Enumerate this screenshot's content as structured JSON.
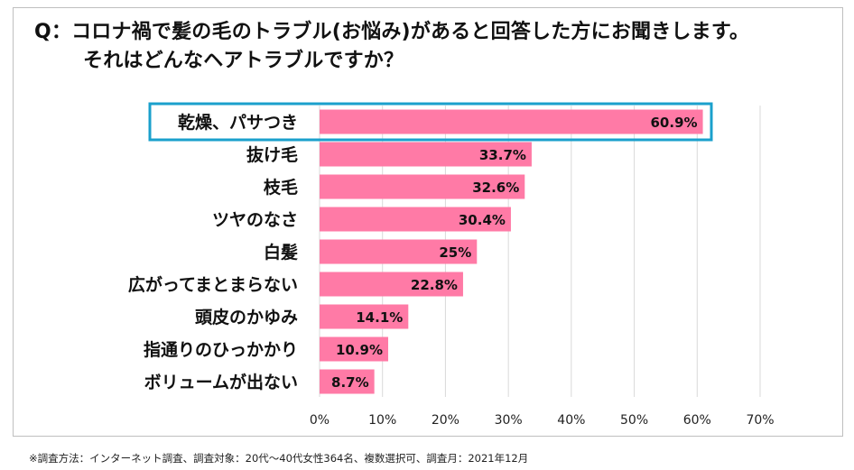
{
  "title_line1": "Q：コロナ禍で髪の毛のトラブル(お悩み)があると回答した方にお聞きします。",
  "title_line2": "それはどんなヘアトラブルですか？",
  "footnote": "※調査方法：インターネット調査、調査対象：20代～40代女性364名、複数選択可、調査月：2021年12月",
  "colors": {
    "bar": "#ff7aa6",
    "highlight": "#1aa0cc",
    "grid": "#d9d9d9"
  },
  "chart_data": {
    "type": "bar",
    "orientation": "horizontal",
    "categories": [
      "乾燥、パサつき",
      "抜け毛",
      "枝毛",
      "ツヤのなさ",
      "白髪",
      "広がってまとまらない",
      "頭皮のかゆみ",
      "指通りのひっかかり",
      "ボリュームが出ない"
    ],
    "values": [
      60.9,
      33.7,
      32.6,
      30.4,
      25,
      22.8,
      14.1,
      10.9,
      8.7
    ],
    "value_labels": [
      "60.9%",
      "33.7%",
      "32.6%",
      "30.4%",
      "25%",
      "22.8%",
      "14.1%",
      "10.9%",
      "8.7%"
    ],
    "xlim": [
      0,
      70
    ],
    "xticks": [
      0,
      10,
      20,
      30,
      40,
      50,
      60,
      70
    ],
    "xtick_labels": [
      "0%",
      "10%",
      "20%",
      "30%",
      "40%",
      "50%",
      "60%",
      "70%"
    ],
    "grid": true,
    "highlighted_category": "乾燥、パサつき"
  }
}
